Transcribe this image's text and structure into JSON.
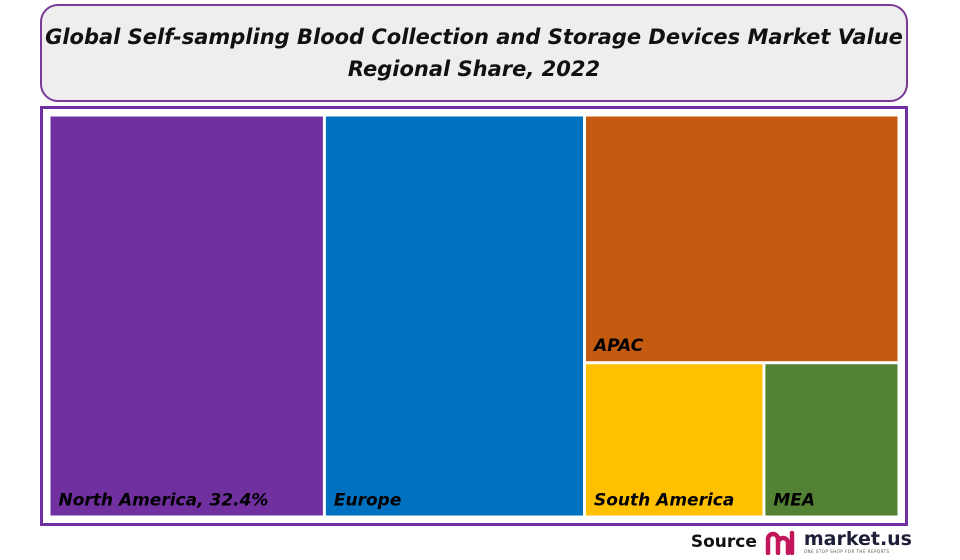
{
  "title": {
    "line1": "Global Self-sampling Blood Collection and Storage Devices Market Value",
    "line2": "Regional Share, 2022"
  },
  "chart_data": {
    "type": "treemap",
    "title": "Global Self-sampling Blood Collection and Storage Devices Market Value Regional Share, 2022",
    "items": [
      {
        "name": "North America",
        "label": "North America, 32.4%",
        "value": 32.4,
        "color": "#7030a0"
      },
      {
        "name": "Europe",
        "label": "Europe",
        "value": 30.6,
        "color": "#0070c0"
      },
      {
        "name": "APAC",
        "label": "APAC",
        "value": 22.8,
        "color": "#c55a11"
      },
      {
        "name": "South America",
        "label": "South America",
        "value": 8.1,
        "color": "#ffc000"
      },
      {
        "name": "MEA",
        "label": "MEA",
        "value": 6.1,
        "color": "#548235"
      }
    ]
  },
  "source": {
    "label": "Source",
    "brand_name": "market.us",
    "brand_tagline": "ONE STOP SHOP FOR THE REPORTS",
    "brand_color": "#c2185b"
  }
}
